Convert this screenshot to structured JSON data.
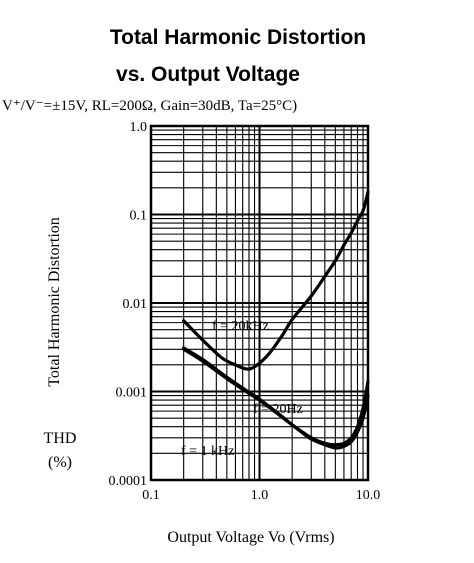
{
  "chart_data": {
    "type": "line",
    "title_line1": "Total Harmonic Distortion",
    "title_line2": "vs. Output Voltage",
    "conditions": "V⁺/V⁻=±15V,  RL=200Ω,  Gain=30dB,  Ta=25°C)",
    "xlabel": "Output Voltage  Vo  (Vrms)",
    "ylabel": "Total Harmonic Distortion",
    "ylabel_short": "THD",
    "ylabel_unit": "(%)",
    "x_scale": "log",
    "y_scale": "log",
    "xlim": [
      0.1,
      10.0
    ],
    "ylim": [
      0.0001,
      1.0
    ],
    "x_ticks": [
      "0.1",
      "1.0",
      "10.0"
    ],
    "y_ticks": [
      "1.0",
      "0.1",
      "0.01",
      "0.001",
      "0.0001"
    ],
    "grid": true,
    "series": [
      {
        "name": "f = 20kHz",
        "x": [
          0.2,
          0.3,
          0.45,
          0.6,
          0.75,
          0.9,
          1.2,
          1.6,
          2.0,
          3.0,
          4.0,
          5.0,
          6.0,
          7.0,
          8.0,
          9.0,
          10.0
        ],
        "y": [
          0.0063,
          0.0038,
          0.0024,
          0.002,
          0.0018,
          0.0019,
          0.0026,
          0.0042,
          0.0065,
          0.012,
          0.02,
          0.03,
          0.045,
          0.062,
          0.085,
          0.11,
          0.18
        ]
      },
      {
        "name": "f = 20Hz",
        "x": [
          0.2,
          0.3,
          0.5,
          0.8,
          1.0,
          1.5,
          2.0,
          3.0,
          4.0,
          5.0,
          6.0,
          7.0,
          8.0,
          9.0,
          10.0
        ],
        "y": [
          0.003,
          0.0022,
          0.0014,
          0.00095,
          0.0008,
          0.00055,
          0.00042,
          0.0003,
          0.00026,
          0.00025,
          0.00026,
          0.0003,
          0.0004,
          0.00065,
          0.0013
        ]
      },
      {
        "name": "f = 1 kHz",
        "x": [
          0.2,
          0.3,
          0.5,
          0.8,
          1.0,
          1.5,
          2.0,
          2.5,
          3.0,
          4.0,
          5.0,
          6.0,
          7.0,
          8.0,
          9.0,
          10.0
        ],
        "y": [
          0.0031,
          0.0023,
          0.00145,
          0.00098,
          0.00082,
          0.00056,
          0.00042,
          0.00034,
          0.00029,
          0.00025,
          0.00023,
          0.00024,
          0.00027,
          0.00035,
          0.0005,
          0.0009
        ]
      }
    ]
  }
}
